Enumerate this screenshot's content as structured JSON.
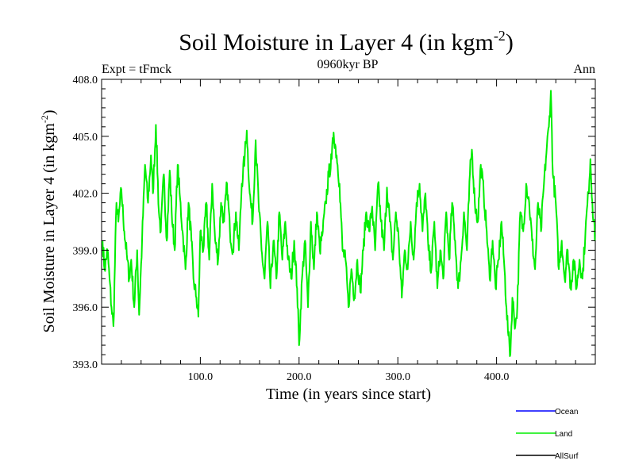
{
  "chart_data": {
    "type": "line",
    "title": "Soil Moisture in Layer 4 (in kgm",
    "title_sup": "-2",
    "title_close": ")",
    "subtitle_left": "Expt = tFmck",
    "subtitle_center": "0960kyr BP",
    "subtitle_right": "Ann",
    "xlabel": "Time (in years since start)",
    "ylabel": "Soil Moisture in Layer 4 (in kgm",
    "ylabel_sup": "-2",
    "ylabel_close": ")",
    "xlim": [
      0,
      500
    ],
    "ylim": [
      393,
      408
    ],
    "xticks": [
      100,
      200,
      300,
      400
    ],
    "xtick_labels": [
      "100.0",
      "200.0",
      "300.0",
      "400.0"
    ],
    "yticks": [
      393,
      396,
      399,
      402,
      405,
      408
    ],
    "ytick_labels": [
      "393.0",
      "396.0",
      "399.0",
      "402.0",
      "405.0",
      "408.0"
    ],
    "legend": [
      {
        "name": "Ocean",
        "color": "#0000ff"
      },
      {
        "name": "Land",
        "color": "#00ee00"
      },
      {
        "name": "AllSurf",
        "color": "#000000"
      }
    ],
    "series": [
      {
        "name": "Land",
        "color": "#00ee00",
        "x_start": 1,
        "x_step": 1,
        "anchors": [
          [
            1,
            399.5
          ],
          [
            3,
            398.0
          ],
          [
            6,
            399.0
          ],
          [
            8,
            397.5
          ],
          [
            10,
            396.0
          ],
          [
            12,
            395.0
          ],
          [
            15,
            401.5
          ],
          [
            17,
            400.5
          ],
          [
            20,
            402.2
          ],
          [
            23,
            400.0
          ],
          [
            26,
            398.5
          ],
          [
            28,
            397.5
          ],
          [
            30,
            398.5
          ],
          [
            33,
            396.0
          ],
          [
            36,
            399.0
          ],
          [
            38,
            395.6
          ],
          [
            41,
            399.5
          ],
          [
            44,
            403.5
          ],
          [
            47,
            401.5
          ],
          [
            50,
            404.0
          ],
          [
            52,
            402.0
          ],
          [
            55,
            405.6
          ],
          [
            58,
            401.0
          ],
          [
            60,
            400.0
          ],
          [
            63,
            403.0
          ],
          [
            66,
            399.5
          ],
          [
            69,
            403.2
          ],
          [
            71,
            401.0
          ],
          [
            74,
            399.0
          ],
          [
            77,
            403.5
          ],
          [
            79,
            402.0
          ],
          [
            82,
            400.0
          ],
          [
            85,
            398.0
          ],
          [
            88,
            401.5
          ],
          [
            91,
            399.5
          ],
          [
            93,
            397.5
          ],
          [
            96,
            396.5
          ],
          [
            98,
            395.5
          ],
          [
            100,
            400.0
          ],
          [
            103,
            399.0
          ],
          [
            106,
            401.5
          ],
          [
            109,
            398.5
          ],
          [
            112,
            402.5
          ],
          [
            115,
            399.5
          ],
          [
            118,
            398.5
          ],
          [
            121,
            401.5
          ],
          [
            124,
            400.5
          ],
          [
            127,
            402.5
          ],
          [
            130,
            400.0
          ],
          [
            133,
            399.0
          ],
          [
            136,
            401.0
          ],
          [
            139,
            399.0
          ],
          [
            142,
            402.5
          ],
          [
            145,
            404.0
          ],
          [
            147,
            405.3
          ],
          [
            150,
            402.0
          ],
          [
            153,
            400.5
          ],
          [
            156,
            404.8
          ],
          [
            159,
            401.5
          ],
          [
            162,
            399.0
          ],
          [
            165,
            397.5
          ],
          [
            168,
            400.5
          ],
          [
            171,
            397.0
          ],
          [
            174,
            399.5
          ],
          [
            177,
            397.5
          ],
          [
            180,
            401.0
          ],
          [
            183,
            398.5
          ],
          [
            186,
            400.5
          ],
          [
            189,
            398.5
          ],
          [
            192,
            397.5
          ],
          [
            195,
            399.5
          ],
          [
            198,
            397.0
          ],
          [
            200,
            394.0
          ],
          [
            203,
            397.5
          ],
          [
            206,
            399.5
          ],
          [
            209,
            396.0
          ],
          [
            212,
            400.5
          ],
          [
            215,
            398.0
          ],
          [
            218,
            401.0
          ],
          [
            221,
            399.0
          ],
          [
            224,
            400.0
          ],
          [
            227,
            401.5
          ],
          [
            230,
            403.0
          ],
          [
            233,
            403.8
          ],
          [
            235,
            405.2
          ],
          [
            238,
            404.0
          ],
          [
            241,
            402.5
          ],
          [
            244,
            399.0
          ],
          [
            247,
            398.5
          ],
          [
            250,
            396.0
          ],
          [
            253,
            398.0
          ],
          [
            256,
            396.5
          ],
          [
            259,
            398.5
          ],
          [
            262,
            396.8
          ],
          [
            265,
            399.0
          ],
          [
            268,
            401.0
          ],
          [
            271,
            400.0
          ],
          [
            274,
            401.3
          ],
          [
            277,
            399.0
          ],
          [
            280,
            402.5
          ],
          [
            283,
            400.5
          ],
          [
            286,
            399.0
          ],
          [
            289,
            402.3
          ],
          [
            292,
            400.5
          ],
          [
            295,
            398.5
          ],
          [
            298,
            401.0
          ],
          [
            301,
            399.5
          ],
          [
            304,
            396.5
          ],
          [
            307,
            399.0
          ],
          [
            310,
            398.0
          ],
          [
            313,
            400.5
          ],
          [
            316,
            398.5
          ],
          [
            319,
            401.5
          ],
          [
            322,
            402.5
          ],
          [
            325,
            400.0
          ],
          [
            328,
            402.0
          ],
          [
            331,
            399.0
          ],
          [
            334,
            398.0
          ],
          [
            337,
            400.5
          ],
          [
            340,
            397.0
          ],
          [
            343,
            399.0
          ],
          [
            346,
            397.5
          ],
          [
            349,
            401.0
          ],
          [
            352,
            398.5
          ],
          [
            355,
            401.5
          ],
          [
            358,
            399.5
          ],
          [
            361,
            397.0
          ],
          [
            364,
            398.5
          ],
          [
            367,
            401.0
          ],
          [
            370,
            399.0
          ],
          [
            373,
            403.0
          ],
          [
            375,
            404.3
          ],
          [
            378,
            401.5
          ],
          [
            381,
            400.5
          ],
          [
            384,
            403.5
          ],
          [
            387,
            402.0
          ],
          [
            390,
            400.0
          ],
          [
            393,
            397.5
          ],
          [
            396,
            399.5
          ],
          [
            399,
            397.0
          ],
          [
            402,
            398.5
          ],
          [
            405,
            400.5
          ],
          [
            408,
            398.0
          ],
          [
            410,
            396.0
          ],
          [
            412,
            394.5
          ],
          [
            414,
            393.5
          ],
          [
            416,
            396.5
          ],
          [
            419,
            395.0
          ],
          [
            421,
            396.0
          ],
          [
            424,
            401.0
          ],
          [
            427,
            400.0
          ],
          [
            430,
            402.5
          ],
          [
            433,
            401.5
          ],
          [
            436,
            399.5
          ],
          [
            439,
            398.0
          ],
          [
            442,
            401.5
          ],
          [
            445,
            400.0
          ],
          [
            448,
            402.5
          ],
          [
            451,
            404.5
          ],
          [
            453,
            405.5
          ],
          [
            455,
            407.4
          ],
          [
            457,
            403.0
          ],
          [
            460,
            401.5
          ],
          [
            463,
            398.0
          ],
          [
            466,
            399.5
          ],
          [
            469,
            397.5
          ],
          [
            472,
            399.0
          ],
          [
            475,
            397.0
          ],
          [
            478,
            398.5
          ],
          [
            481,
            397.0
          ],
          [
            484,
            398.5
          ],
          [
            487,
            397.5
          ],
          [
            490,
            400.0
          ],
          [
            493,
            402.0
          ],
          [
            495,
            403.8
          ],
          [
            497,
            401.5
          ],
          [
            500,
            399.5
          ]
        ]
      }
    ]
  }
}
